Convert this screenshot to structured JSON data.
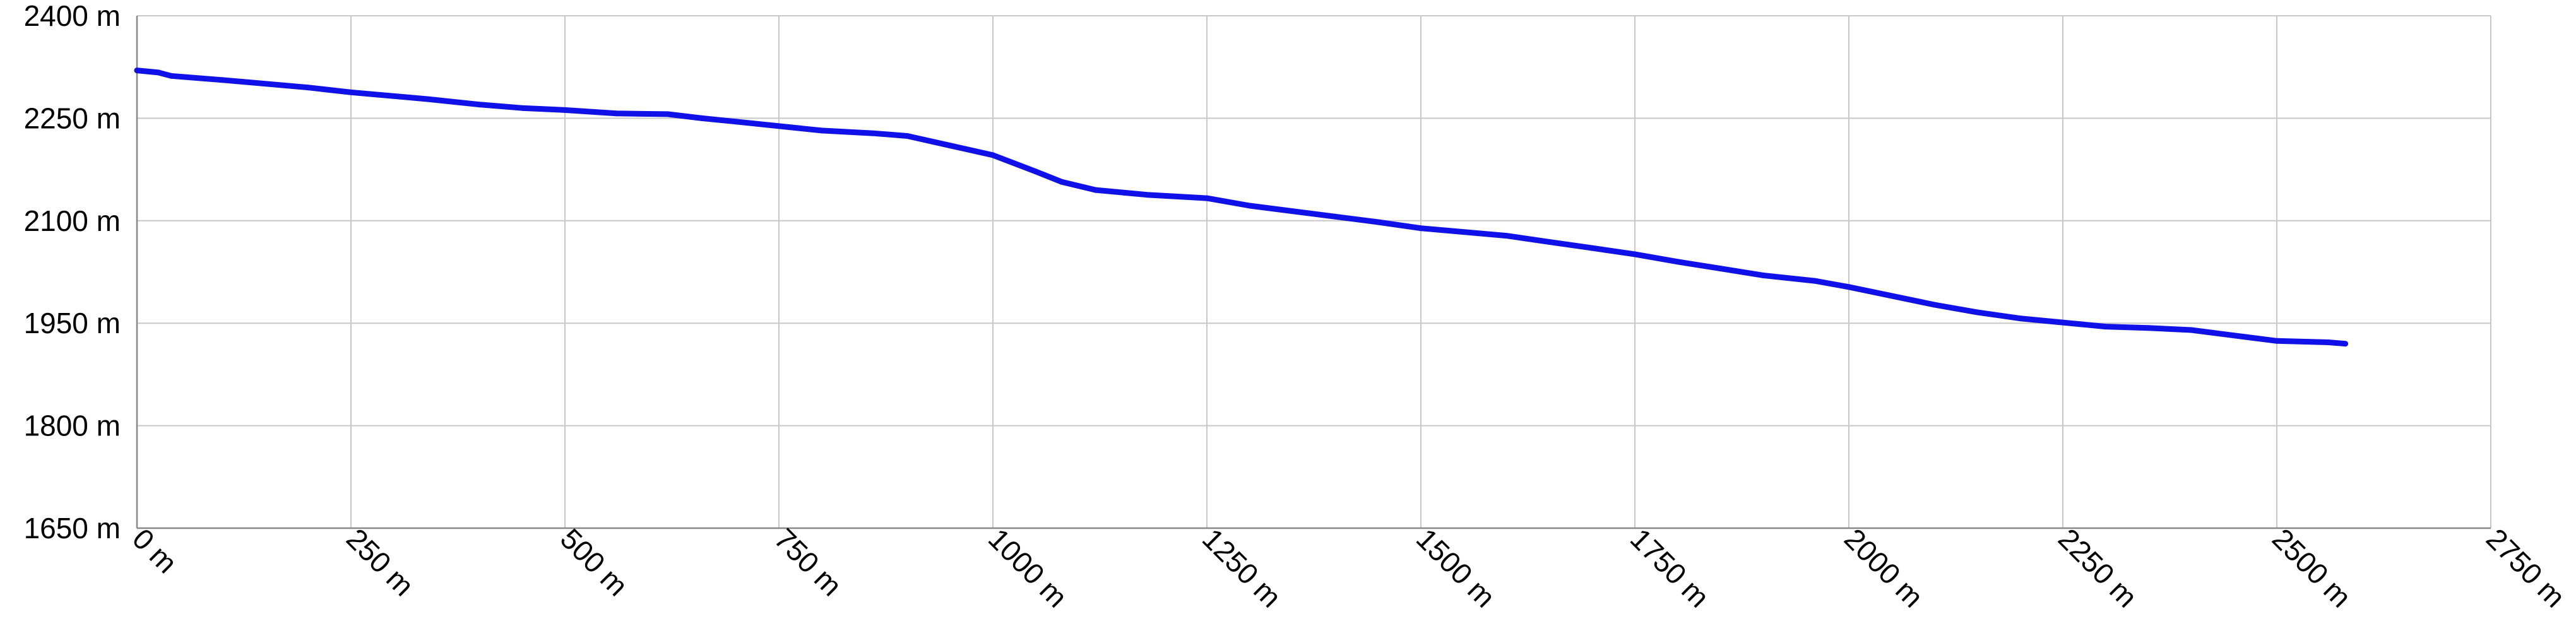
{
  "chart_data": {
    "type": "line",
    "title": "",
    "xlabel": "",
    "ylabel": "",
    "xlim": [
      0,
      2750
    ],
    "ylim": [
      1650,
      2400
    ],
    "grid": true,
    "x_ticks": [
      0,
      250,
      500,
      750,
      1000,
      1250,
      1500,
      1750,
      2000,
      2250,
      2500,
      2750
    ],
    "x_tick_labels": [
      "0 m",
      "250 m",
      "500 m",
      "750 m",
      "1000 m",
      "1250 m",
      "1500 m",
      "1750 m",
      "2000 m",
      "2250 m",
      "2500 m",
      "2750 m"
    ],
    "y_ticks": [
      2400,
      2250,
      2100,
      1950,
      1800,
      1650
    ],
    "y_tick_labels": [
      "2400 m",
      "2250 m",
      "2100 m",
      "1950 m",
      "1800 m",
      "1650 m"
    ],
    "line_color": "#1010e8",
    "series": [
      {
        "x": [
          0,
          25,
          40,
          100,
          200,
          250,
          340,
          400,
          450,
          500,
          560,
          620,
          660,
          700,
          800,
          860,
          900,
          950,
          1000,
          1050,
          1080,
          1120,
          1180,
          1250,
          1300,
          1400,
          1450,
          1500,
          1600,
          1650,
          1700,
          1750,
          1800,
          1850,
          1900,
          1960,
          2000,
          2100,
          2150,
          2200,
          2250,
          2300,
          2350,
          2400,
          2450,
          2500,
          2560,
          2580
        ],
        "y": [
          2320,
          2317,
          2312,
          2306,
          2295,
          2288,
          2278,
          2270,
          2265,
          2262,
          2257,
          2256,
          2250,
          2245,
          2232,
          2228,
          2224,
          2210,
          2196,
          2172,
          2157,
          2145,
          2138,
          2133,
          2122,
          2106,
          2098,
          2089,
          2078,
          2069,
          2060,
          2051,
          2040,
          2030,
          2020,
          2012,
          2003,
          1977,
          1966,
          1957,
          1951,
          1945,
          1943,
          1940,
          1932,
          1924,
          1922,
          1920
        ]
      }
    ]
  }
}
